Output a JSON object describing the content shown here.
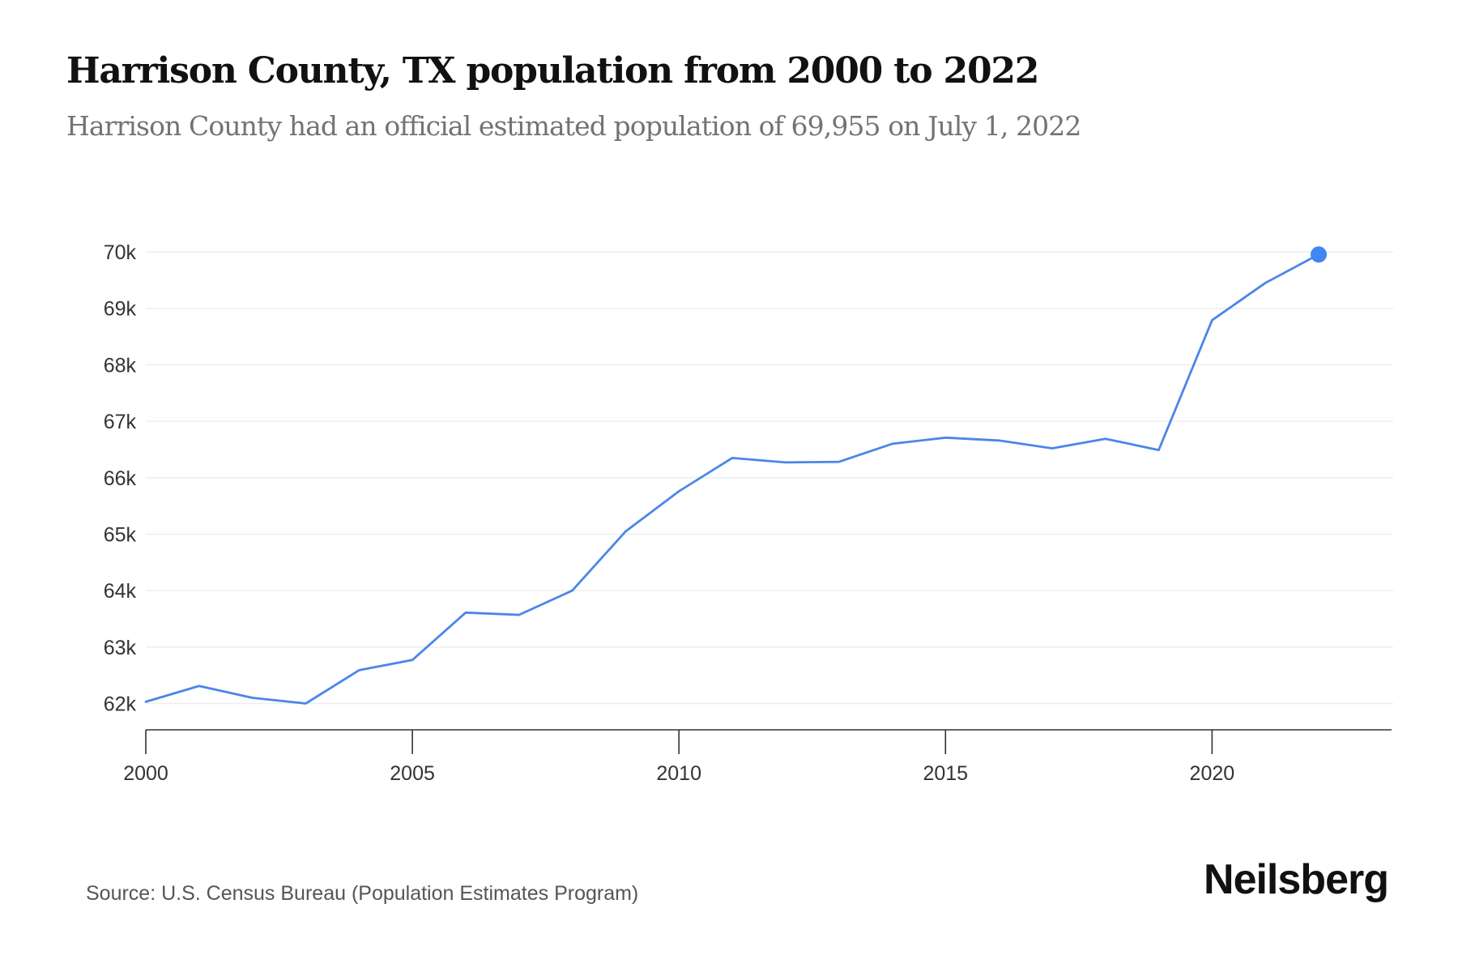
{
  "header": {
    "title": "Harrison County, TX population from 2000 to 2022",
    "subtitle": "Harrison County had an official estimated population of 69,955 on July 1, 2022"
  },
  "footer": {
    "source": "Source: U.S. Census Bureau (Population Estimates Program)",
    "brand": "Neilsberg"
  },
  "colors": {
    "line": "#4a86e8",
    "marker": "#4285f4",
    "grid": "#eeeeee",
    "axis": "#333333"
  },
  "chart_data": {
    "type": "line",
    "title": "Harrison County, TX population from 2000 to 2022",
    "subtitle": "Harrison County had an official estimated population of 69,955 on July 1, 2022",
    "xlabel": "",
    "ylabel": "",
    "x": [
      2000,
      2001,
      2002,
      2003,
      2004,
      2005,
      2006,
      2007,
      2008,
      2009,
      2010,
      2011,
      2012,
      2013,
      2014,
      2015,
      2016,
      2017,
      2018,
      2019,
      2020,
      2021,
      2022
    ],
    "series": [
      {
        "name": "Population",
        "values": [
          62030,
          62310,
          62100,
          62000,
          62590,
          62770,
          63610,
          63570,
          64000,
          65050,
          65760,
          66350,
          66270,
          66280,
          66600,
          66710,
          66660,
          66520,
          66690,
          66490,
          68790,
          69450,
          69955
        ]
      }
    ],
    "highlight_point": {
      "x": 2022,
      "value": 69955
    },
    "xlim": [
      2000,
      2023.5
    ],
    "ylim": [
      61550,
      70000
    ],
    "x_ticks": [
      2000,
      2005,
      2010,
      2015,
      2020
    ],
    "x_tick_labels": [
      "2000",
      "2005",
      "2010",
      "2015",
      "2020"
    ],
    "y_ticks": [
      62000,
      63000,
      64000,
      65000,
      66000,
      67000,
      68000,
      69000,
      70000
    ],
    "y_tick_labels": [
      "62k",
      "63k",
      "64k",
      "65k",
      "66k",
      "67k",
      "68k",
      "69k",
      "70k"
    ],
    "grid": true,
    "legend": "none",
    "source": "Source: U.S. Census Bureau (Population Estimates Program)"
  }
}
